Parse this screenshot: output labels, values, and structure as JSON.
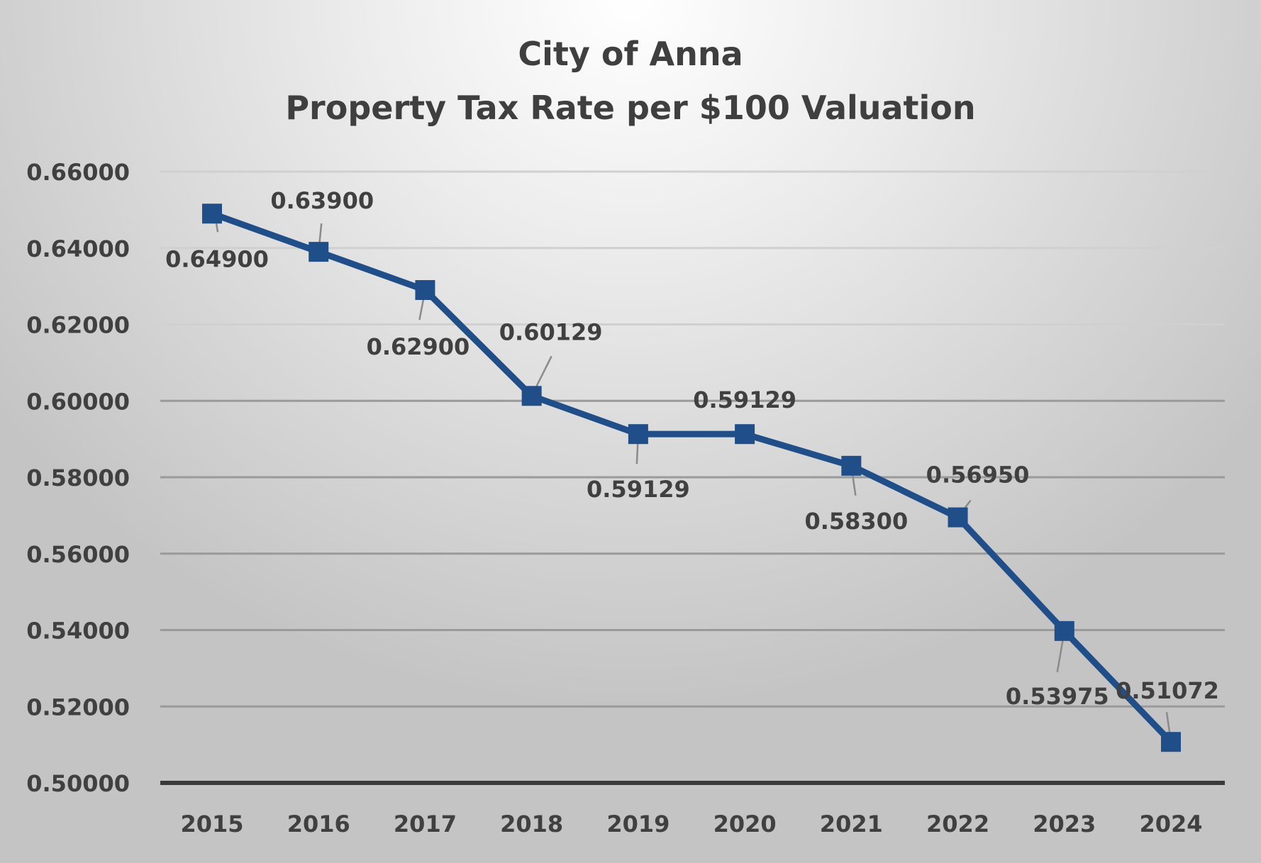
{
  "chart_data": {
    "type": "line",
    "title": "City of Anna",
    "subtitle": "Property Tax Rate per $100 Valuation",
    "xlabel": "",
    "ylabel": "",
    "categories": [
      "2015",
      "2016",
      "2017",
      "2018",
      "2019",
      "2020",
      "2021",
      "2022",
      "2023",
      "2024"
    ],
    "values": [
      0.649,
      0.639,
      0.629,
      0.60129,
      0.59129,
      0.59129,
      0.583,
      0.5695,
      0.53975,
      0.51072
    ],
    "data_labels": [
      "0.64900",
      "0.63900",
      "0.62900",
      "0.60129",
      "0.59129",
      "0.59129",
      "0.58300",
      "0.56950",
      "0.53975",
      "0.51072"
    ],
    "ylim": [
      0.5,
      0.66
    ],
    "yticks": [
      "0.50000",
      "0.52000",
      "0.54000",
      "0.56000",
      "0.58000",
      "0.60000",
      "0.62000",
      "0.64000",
      "0.66000"
    ],
    "grid": true,
    "legend": "none",
    "marker": "square",
    "line_color": "#1f4e89"
  }
}
